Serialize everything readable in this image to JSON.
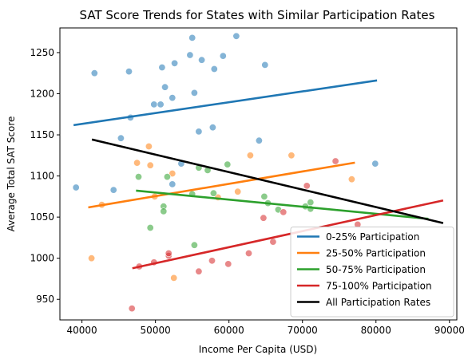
{
  "chart_data": {
    "type": "scatter",
    "title": "SAT Score Trends for States with Similar Participation Rates",
    "xlabel": "Income Per Capita (USD)",
    "ylabel": "Average Total SAT Score",
    "xlim": [
      37000,
      91000
    ],
    "ylim": [
      925,
      1280
    ],
    "xticks": [
      40000,
      50000,
      60000,
      70000,
      80000,
      90000
    ],
    "yticks": [
      950,
      1000,
      1050,
      1100,
      1150,
      1200,
      1250
    ],
    "grid": false,
    "legend_position": "lower-right",
    "series": [
      {
        "name": "0-25% Participation",
        "color": "#1f77b4",
        "points": [
          [
            39200,
            1086
          ],
          [
            41700,
            1225
          ],
          [
            44300,
            1083
          ],
          [
            45300,
            1146
          ],
          [
            46400,
            1227
          ],
          [
            46600,
            1171
          ],
          [
            49800,
            1187
          ],
          [
            50700,
            1187
          ],
          [
            50900,
            1232
          ],
          [
            51300,
            1208
          ],
          [
            52300,
            1195
          ],
          [
            52600,
            1237
          ],
          [
            52300,
            1090
          ],
          [
            53500,
            1115
          ],
          [
            54700,
            1247
          ],
          [
            55000,
            1268
          ],
          [
            55300,
            1201
          ],
          [
            55900,
            1154
          ],
          [
            56300,
            1241
          ],
          [
            57800,
            1159
          ],
          [
            58000,
            1230
          ],
          [
            59200,
            1246
          ],
          [
            61000,
            1270
          ],
          [
            64100,
            1143
          ],
          [
            64900,
            1235
          ],
          [
            79900,
            1115
          ]
        ],
        "fit": [
          [
            39000,
            1162
          ],
          [
            80000,
            1216
          ]
        ]
      },
      {
        "name": "25-50% Participation",
        "color": "#ff7f0e",
        "points": [
          [
            41300,
            1000
          ],
          [
            42700,
            1065
          ],
          [
            47500,
            1116
          ],
          [
            49100,
            1136
          ],
          [
            49300,
            1113
          ],
          [
            49900,
            1075
          ],
          [
            52300,
            1103
          ],
          [
            52500,
            976
          ],
          [
            58500,
            1074
          ],
          [
            61200,
            1081
          ],
          [
            62900,
            1125
          ],
          [
            68500,
            1125
          ],
          [
            76700,
            1096
          ]
        ],
        "fit": [
          [
            41000,
            1062
          ],
          [
            77000,
            1116
          ]
        ]
      },
      {
        "name": "50-75% Participation",
        "color": "#2ca02c",
        "points": [
          [
            47700,
            1099
          ],
          [
            49300,
            1037
          ],
          [
            51100,
            1063
          ],
          [
            51100,
            1057
          ],
          [
            51600,
            1099
          ],
          [
            55000,
            1078
          ],
          [
            55300,
            1016
          ],
          [
            55900,
            1110
          ],
          [
            57100,
            1107
          ],
          [
            57900,
            1079
          ],
          [
            59800,
            1114
          ],
          [
            64800,
            1075
          ],
          [
            65300,
            1067
          ],
          [
            66700,
            1059
          ],
          [
            70400,
            1063
          ],
          [
            71100,
            1068
          ],
          [
            71100,
            1060
          ]
        ],
        "fit": [
          [
            47500,
            1082
          ],
          [
            87000,
            1048
          ]
        ]
      },
      {
        "name": "75-100% Participation",
        "color": "#d62728",
        "points": [
          [
            46800,
            939
          ],
          [
            47800,
            990
          ],
          [
            49800,
            995
          ],
          [
            51800,
            1003
          ],
          [
            51800,
            1006
          ],
          [
            55900,
            984
          ],
          [
            57700,
            997
          ],
          [
            59900,
            993
          ],
          [
            62700,
            1006
          ],
          [
            64700,
            1049
          ],
          [
            66000,
            1020
          ],
          [
            67400,
            1056
          ],
          [
            70600,
            1088
          ],
          [
            74500,
            1118
          ],
          [
            77500,
            1041
          ]
        ],
        "fit": [
          [
            47000,
            988
          ],
          [
            89000,
            1070
          ]
        ]
      },
      {
        "name": "All Participation Rates",
        "color": "#000000",
        "points": [],
        "fit": [
          [
            41500,
            1144
          ],
          [
            89000,
            1043
          ]
        ]
      }
    ]
  }
}
